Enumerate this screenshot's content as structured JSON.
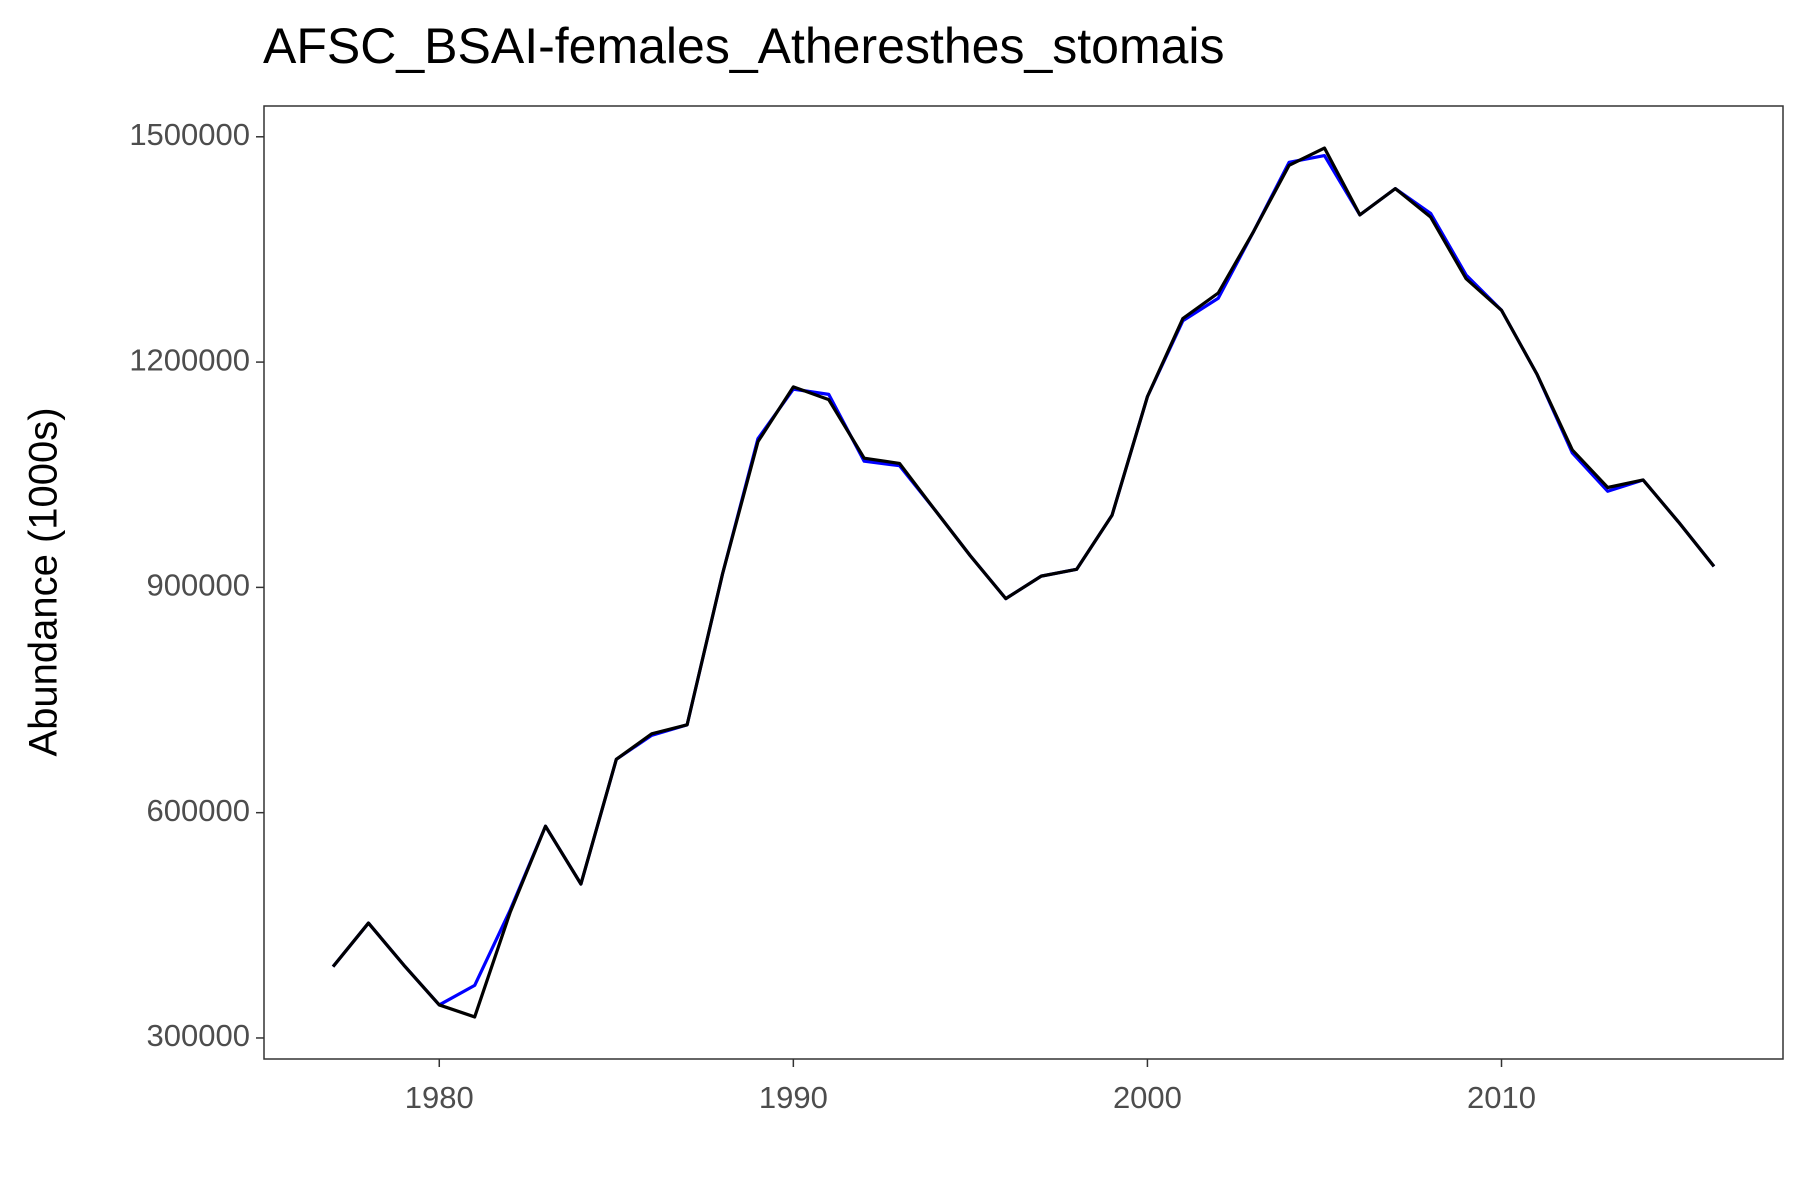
{
  "chart_data": {
    "type": "line",
    "title": "AFSC_BSAI-females_Atheresthes_stomais",
    "y_label": "Abundance (1000s)",
    "x": [
      1977,
      1978,
      1979,
      1980,
      1981,
      1982,
      1983,
      1984,
      1985,
      1986,
      1987,
      1988,
      1989,
      1990,
      1991,
      1992,
      1993,
      1994,
      1995,
      1996,
      1997,
      1998,
      1999,
      2000,
      2001,
      2002,
      2003,
      2004,
      2005,
      2006,
      2007,
      2008,
      2009,
      2010,
      2011,
      2012,
      2013,
      2014,
      2015,
      2016
    ],
    "series": [
      {
        "color": "#0000ff",
        "values": [
          395000,
          453000,
          397000,
          344000,
          370000,
          470000,
          582000,
          505000,
          671000,
          703000,
          717000,
          918000,
          1098000,
          1164000,
          1157000,
          1068000,
          1062000,
          1003000,
          942000,
          885000,
          915000,
          924000,
          996000,
          1154000,
          1255000,
          1285000,
          1374000,
          1466000,
          1475000,
          1396000,
          1431000,
          1398000,
          1316000,
          1269000,
          1184000,
          1079000,
          1028000,
          1043000,
          987000,
          928000
        ]
      },
      {
        "color": "#000000",
        "values": [
          395000,
          453000,
          397000,
          344000,
          328000,
          467000,
          582000,
          505000,
          671000,
          705000,
          717000,
          918000,
          1094000,
          1167000,
          1150000,
          1072000,
          1065000,
          1003000,
          942000,
          885000,
          915000,
          924000,
          996000,
          1154000,
          1258000,
          1292000,
          1374000,
          1462000,
          1485000,
          1396000,
          1431000,
          1393000,
          1311000,
          1269000,
          1184000,
          1083000,
          1033000,
          1043000,
          987000,
          928000
        ]
      }
    ],
    "xlim": [
      1975.05,
      2017.95
    ],
    "xticks": [
      1980,
      1990,
      2000,
      2010
    ],
    "ylim": [
      272000,
      1541000
    ],
    "yticks": [
      300000,
      600000,
      900000,
      1200000,
      1500000
    ],
    "grid": false
  }
}
